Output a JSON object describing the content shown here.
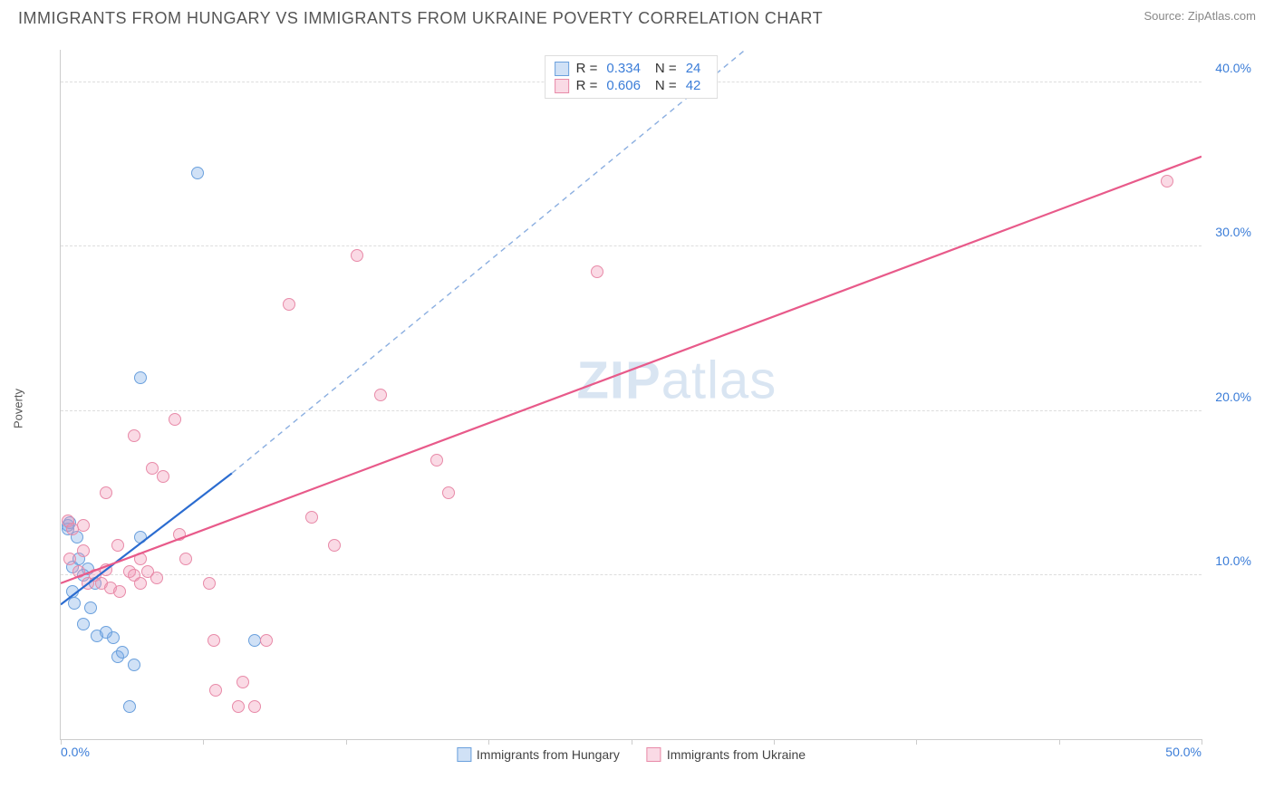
{
  "header": {
    "title": "IMMIGRANTS FROM HUNGARY VS IMMIGRANTS FROM UKRAINE POVERTY CORRELATION CHART",
    "source_prefix": "Source: ",
    "source_link": "ZipAtlas.com"
  },
  "chart": {
    "type": "scatter",
    "ylabel": "Poverty",
    "watermark_a": "ZIP",
    "watermark_b": "atlas",
    "xlim": [
      0,
      50
    ],
    "ylim": [
      0,
      42
    ],
    "x_ticks": [
      0,
      6.25,
      12.5,
      18.75,
      25,
      31.25,
      37.5,
      43.75,
      50
    ],
    "x_tick_labels": {
      "0": "0.0%",
      "50": "50.0%"
    },
    "y_gridlines": [
      10,
      20,
      30,
      40
    ],
    "y_tick_labels": {
      "10": "10.0%",
      "20": "20.0%",
      "30": "30.0%",
      "40": "40.0%"
    },
    "background_color": "#ffffff",
    "grid_color": "#dddddd",
    "axis_color": "#cccccc",
    "tick_label_color": "#3b7dd8",
    "point_radius": 7,
    "point_border_width": 1.5,
    "series": [
      {
        "name": "Immigrants from Hungary",
        "fill_color": "rgba(120,170,230,0.35)",
        "border_color": "#6aa0dd",
        "line_color": "#2b6cd0",
        "dash_color": "#8aaee0",
        "R_label": "R = ",
        "R_value": "0.334",
        "N_label": "N = ",
        "N_value": "24",
        "trend_solid": {
          "x1": 0,
          "y1": 8.2,
          "x2": 7.5,
          "y2": 16.2
        },
        "trend_dash": {
          "x1": 7.5,
          "y1": 16.2,
          "x2": 30,
          "y2": 42
        },
        "points": [
          [
            0.3,
            12.8
          ],
          [
            0.3,
            13.0
          ],
          [
            0.5,
            10.5
          ],
          [
            0.7,
            12.3
          ],
          [
            0.8,
            11.0
          ],
          [
            0.5,
            9.0
          ],
          [
            0.6,
            8.3
          ],
          [
            1.0,
            10.0
          ],
          [
            1.2,
            10.4
          ],
          [
            1.5,
            9.5
          ],
          [
            1.0,
            7.0
          ],
          [
            1.6,
            6.3
          ],
          [
            2.3,
            6.2
          ],
          [
            2.5,
            5.0
          ],
          [
            2.7,
            5.3
          ],
          [
            3.0,
            2.0
          ],
          [
            3.2,
            4.5
          ],
          [
            3.5,
            12.3
          ],
          [
            3.5,
            22.0
          ],
          [
            8.5,
            6.0
          ],
          [
            6.0,
            34.5
          ],
          [
            0.4,
            13.2
          ],
          [
            1.3,
            8.0
          ],
          [
            2.0,
            6.5
          ]
        ]
      },
      {
        "name": "Immigrants from Ukraine",
        "fill_color": "rgba(240,150,180,0.35)",
        "border_color": "#e88aa8",
        "line_color": "#e85a8a",
        "R_label": "R = ",
        "R_value": "0.606",
        "N_label": "N = ",
        "N_value": "42",
        "trend_solid": {
          "x1": 0,
          "y1": 9.5,
          "x2": 50,
          "y2": 35.5
        },
        "points": [
          [
            0.3,
            13.3
          ],
          [
            0.5,
            12.8
          ],
          [
            0.4,
            11.0
          ],
          [
            0.8,
            10.2
          ],
          [
            1.0,
            11.5
          ],
          [
            1.2,
            9.5
          ],
          [
            1.5,
            10.0
          ],
          [
            1.8,
            9.5
          ],
          [
            2.0,
            10.3
          ],
          [
            2.2,
            9.2
          ],
          [
            2.5,
            11.8
          ],
          [
            2.6,
            9.0
          ],
          [
            3.0,
            10.2
          ],
          [
            3.2,
            10.0
          ],
          [
            3.5,
            11.0
          ],
          [
            3.5,
            9.5
          ],
          [
            3.8,
            10.2
          ],
          [
            4.0,
            16.5
          ],
          [
            4.2,
            9.8
          ],
          [
            4.5,
            16.0
          ],
          [
            5.0,
            19.5
          ],
          [
            5.2,
            12.5
          ],
          [
            5.5,
            11.0
          ],
          [
            6.5,
            9.5
          ],
          [
            6.7,
            6.0
          ],
          [
            6.8,
            3.0
          ],
          [
            7.8,
            2.0
          ],
          [
            8.0,
            3.5
          ],
          [
            8.5,
            2.0
          ],
          [
            9.0,
            6.0
          ],
          [
            10.0,
            26.5
          ],
          [
            11.0,
            13.5
          ],
          [
            12.0,
            11.8
          ],
          [
            13.0,
            29.5
          ],
          [
            14.0,
            21.0
          ],
          [
            16.5,
            17.0
          ],
          [
            17.0,
            15.0
          ],
          [
            23.5,
            28.5
          ],
          [
            48.5,
            34.0
          ],
          [
            3.2,
            18.5
          ],
          [
            2.0,
            15.0
          ],
          [
            1.0,
            13.0
          ]
        ]
      }
    ],
    "legend_bottom": [
      {
        "swatch_fill": "rgba(120,170,230,0.35)",
        "swatch_border": "#6aa0dd",
        "label": "Immigrants from Hungary"
      },
      {
        "swatch_fill": "rgba(240,150,180,0.35)",
        "swatch_border": "#e88aa8",
        "label": "Immigrants from Ukraine"
      }
    ]
  }
}
